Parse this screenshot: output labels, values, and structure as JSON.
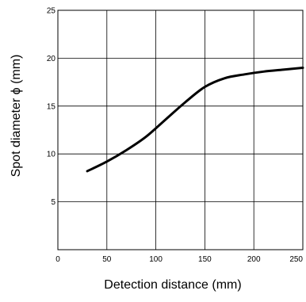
{
  "chart_data": {
    "type": "line",
    "xlabel": "Detection distance (mm)",
    "ylabel": "Spot diameter ϕ (mm)",
    "xlim": [
      0,
      250
    ],
    "ylim": [
      0,
      25
    ],
    "x_ticks": [
      0,
      50,
      100,
      150,
      200,
      250
    ],
    "y_ticks": [
      5,
      10,
      15,
      20,
      25
    ],
    "grid": true,
    "series": [
      {
        "x": [
          30,
          50,
          70,
          90,
          110,
          130,
          150,
          170,
          190,
          210,
          230,
          250
        ],
        "y": [
          8.2,
          9.2,
          10.4,
          11.8,
          13.6,
          15.4,
          17.0,
          17.9,
          18.3,
          18.6,
          18.8,
          19.0
        ]
      }
    ],
    "colors": {
      "line": "#000000",
      "grid": "#000000"
    }
  }
}
